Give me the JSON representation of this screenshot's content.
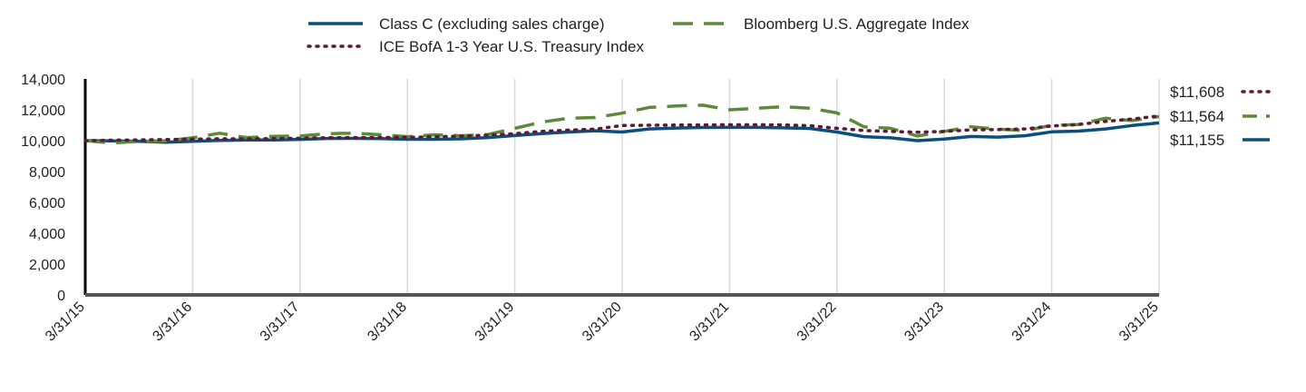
{
  "chart_data": {
    "type": "line",
    "title": "",
    "xlabel": "",
    "ylabel": "",
    "ylim": [
      0,
      14000
    ],
    "y_ticks": [
      0,
      2000,
      4000,
      6000,
      8000,
      10000,
      12000,
      14000
    ],
    "y_tick_labels": [
      "0",
      "2,000",
      "4,000",
      "6,000",
      "8,000",
      "10,000",
      "12,000",
      "14,000"
    ],
    "x_range": [
      "3/31/15",
      "3/31/25"
    ],
    "x_tick_labels": [
      "3/31/15",
      "3/31/16",
      "3/31/17",
      "3/31/18",
      "3/31/19",
      "3/31/20",
      "3/31/21",
      "3/31/22",
      "3/31/23",
      "3/31/24",
      "3/31/25"
    ],
    "grid": "vertical",
    "legend_position": "top",
    "series": [
      {
        "name": "Class C (excluding sales charge)",
        "color": "#0d4f7c",
        "style": "solid",
        "end_label": "$11,155",
        "values": [
          [
            0,
            10000
          ],
          [
            0.25,
            9980
          ],
          [
            0.5,
            9960
          ],
          [
            0.75,
            9900
          ],
          [
            1,
            9960
          ],
          [
            1.25,
            10010
          ],
          [
            1.5,
            10040
          ],
          [
            1.75,
            10040
          ],
          [
            2,
            10080
          ],
          [
            2.25,
            10140
          ],
          [
            2.5,
            10150
          ],
          [
            2.75,
            10130
          ],
          [
            3,
            10090
          ],
          [
            3.25,
            10090
          ],
          [
            3.5,
            10120
          ],
          [
            3.75,
            10200
          ],
          [
            4,
            10330
          ],
          [
            4.25,
            10450
          ],
          [
            4.5,
            10560
          ],
          [
            4.75,
            10640
          ],
          [
            5,
            10560
          ],
          [
            5.25,
            10760
          ],
          [
            5.5,
            10820
          ],
          [
            5.75,
            10850
          ],
          [
            6,
            10860
          ],
          [
            6.25,
            10860
          ],
          [
            6.5,
            10830
          ],
          [
            6.75,
            10790
          ],
          [
            7,
            10560
          ],
          [
            7.25,
            10260
          ],
          [
            7.5,
            10180
          ],
          [
            7.75,
            10000
          ],
          [
            8,
            10100
          ],
          [
            8.25,
            10270
          ],
          [
            8.5,
            10230
          ],
          [
            8.75,
            10320
          ],
          [
            9,
            10570
          ],
          [
            9.25,
            10620
          ],
          [
            9.5,
            10760
          ],
          [
            9.75,
            10980
          ],
          [
            10,
            11155
          ]
        ]
      },
      {
        "name": "Bloomberg U.S. Aggregate Index",
        "color": "#5d8a3a",
        "style": "dashed",
        "end_label": "$11,564",
        "values": [
          [
            0,
            10000
          ],
          [
            0.25,
            9850
          ],
          [
            0.5,
            9950
          ],
          [
            0.75,
            9990
          ],
          [
            1,
            10180
          ],
          [
            1.25,
            10480
          ],
          [
            1.5,
            10200
          ],
          [
            1.75,
            10280
          ],
          [
            2,
            10300
          ],
          [
            2.25,
            10450
          ],
          [
            2.5,
            10480
          ],
          [
            2.75,
            10380
          ],
          [
            3,
            10260
          ],
          [
            3.25,
            10380
          ],
          [
            3.5,
            10320
          ],
          [
            3.75,
            10400
          ],
          [
            4,
            10800
          ],
          [
            4.25,
            11200
          ],
          [
            4.5,
            11450
          ],
          [
            4.75,
            11500
          ],
          [
            5,
            11780
          ],
          [
            5.25,
            12150
          ],
          [
            5.5,
            12250
          ],
          [
            5.75,
            12300
          ],
          [
            6,
            12000
          ],
          [
            6.25,
            12100
          ],
          [
            6.5,
            12200
          ],
          [
            6.75,
            12100
          ],
          [
            7,
            11800
          ],
          [
            7.25,
            10900
          ],
          [
            7.5,
            10800
          ],
          [
            7.75,
            10300
          ],
          [
            8,
            10600
          ],
          [
            8.25,
            10900
          ],
          [
            8.5,
            10750
          ],
          [
            8.75,
            10650
          ],
          [
            9,
            11000
          ],
          [
            9.25,
            11050
          ],
          [
            9.5,
            11450
          ],
          [
            9.75,
            11300
          ],
          [
            10,
            11564
          ]
        ]
      },
      {
        "name": "ICE BofA 1-3 Year U.S. Treasury Index",
        "color": "#5c1a33",
        "style": "dotted",
        "end_label": "$11,608",
        "values": [
          [
            0,
            10000
          ],
          [
            0.25,
            10030
          ],
          [
            0.5,
            10050
          ],
          [
            0.75,
            10070
          ],
          [
            1,
            10100
          ],
          [
            1.25,
            10120
          ],
          [
            1.5,
            10120
          ],
          [
            1.75,
            10130
          ],
          [
            2,
            10160
          ],
          [
            2.25,
            10190
          ],
          [
            2.5,
            10200
          ],
          [
            2.75,
            10200
          ],
          [
            3,
            10220
          ],
          [
            3.25,
            10250
          ],
          [
            3.5,
            10300
          ],
          [
            3.75,
            10350
          ],
          [
            4,
            10450
          ],
          [
            4.25,
            10600
          ],
          [
            4.5,
            10680
          ],
          [
            4.75,
            10750
          ],
          [
            5,
            10980
          ],
          [
            5.25,
            11000
          ],
          [
            5.5,
            11010
          ],
          [
            5.75,
            11020
          ],
          [
            6,
            11030
          ],
          [
            6.25,
            11030
          ],
          [
            6.5,
            11020
          ],
          [
            6.75,
            10970
          ],
          [
            7,
            10800
          ],
          [
            7.25,
            10660
          ],
          [
            7.5,
            10600
          ],
          [
            7.75,
            10550
          ],
          [
            8,
            10600
          ],
          [
            8.25,
            10700
          ],
          [
            8.5,
            10720
          ],
          [
            8.75,
            10760
          ],
          [
            9,
            10950
          ],
          [
            9.25,
            11050
          ],
          [
            9.5,
            11250
          ],
          [
            9.75,
            11400
          ],
          [
            10,
            11608
          ]
        ]
      }
    ]
  }
}
